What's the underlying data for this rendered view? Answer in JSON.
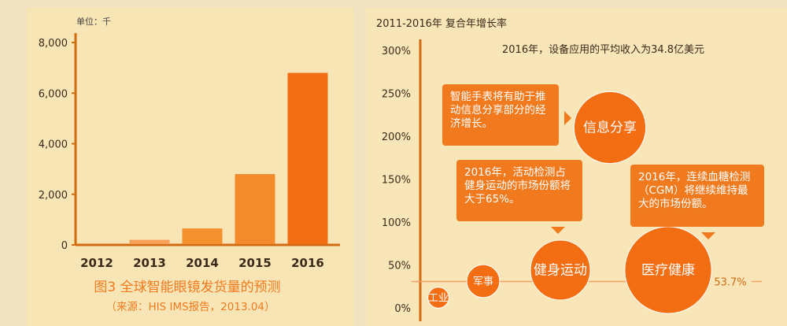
{
  "left_chart": {
    "unit_label": "单位：千",
    "caption": "图3   全球智能眼镜发货量的预测",
    "source": "（来源：HIS IMS报告，2013.04）",
    "chart_data": {
      "type": "bar",
      "categories": [
        "2012",
        "2013",
        "2014",
        "2015",
        "2016"
      ],
      "values": [
        50,
        200,
        650,
        2800,
        6800
      ],
      "ylim": [
        0,
        8000
      ],
      "yticks": [
        "0",
        "2,000",
        "4,000",
        "6,000",
        "8,000"
      ],
      "ytick_values": [
        0,
        2000,
        4000,
        6000,
        8000
      ],
      "bar_colors": [
        "#f07a1d",
        "#f8a15a",
        "#f5902e",
        "#f38a2c",
        "#f36e12"
      ],
      "grid": false
    }
  },
  "right_chart": {
    "title": "2011-2016年  复合年增长率",
    "headline": "2016年，设备应用的平均收入为34.8亿美元",
    "reference_line_label": "53.7%",
    "callouts": {
      "watch": "智能手表将有助于推动信息分享部分的经济增长。",
      "fitness": "2016年，活动检测占健身运动的市场份额将大于65%。",
      "cgm": "2016年，连续血糖检测（CGM）将继续维持最大的市场份额。"
    },
    "chart_data": {
      "type": "scatter",
      "ylabel": "",
      "ylim": [
        0,
        300
      ],
      "yticks": [
        "0%",
        "50%",
        "100%",
        "150%",
        "200%",
        "250%",
        "300%"
      ],
      "ytick_values": [
        0,
        50,
        100,
        150,
        200,
        250,
        300
      ],
      "reference_value": 53.7,
      "series": [
        {
          "label": "工业",
          "y": 10,
          "size": 0.35
        },
        {
          "label": "军事",
          "y": 30,
          "size": 0.55
        },
        {
          "label": "健身运动",
          "y": 48,
          "size": 1.0
        },
        {
          "label": "医疗健康",
          "y": 47,
          "size": 1.45
        },
        {
          "label": "信息分享",
          "y": 185,
          "size": 1.2
        }
      ],
      "bubble_color": "#f36e12"
    }
  }
}
